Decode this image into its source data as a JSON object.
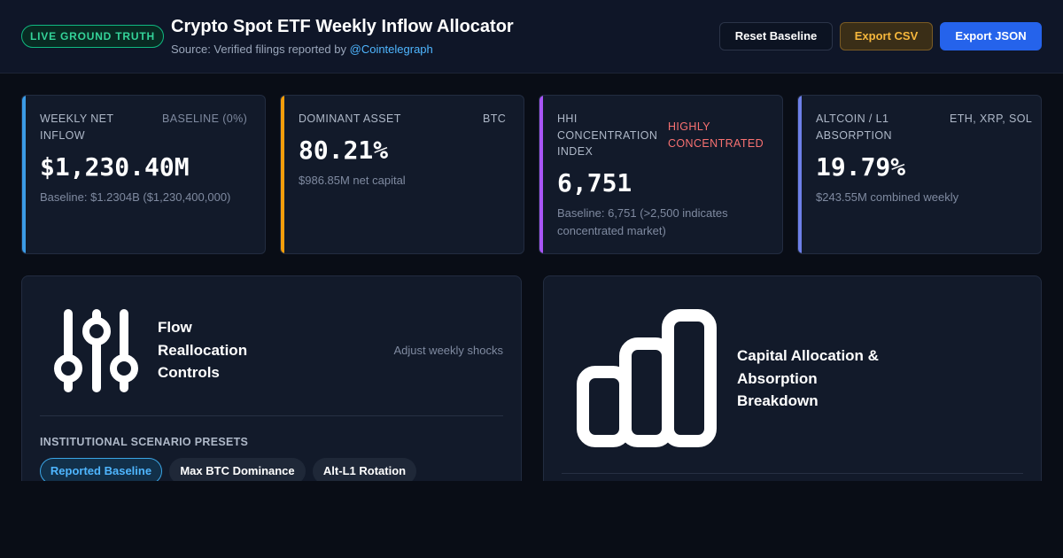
{
  "header": {
    "badge": "LIVE GROUND TRUTH",
    "title": "Crypto Spot ETF Weekly Inflow Allocator",
    "source_prefix": "Source: Verified filings reported by",
    "source_link": "@Cointelegraph"
  },
  "toolbar": {
    "reset_label": "Reset Baseline",
    "csv_label": "Export CSV",
    "json_label": "Export JSON"
  },
  "kpis": [
    {
      "label": "WEEKLY NET INFLOW",
      "tag": "BASELINE (0%)",
      "value": "$1,230.40M",
      "sub": "Baseline: $1.2304B ($1,230,400,000)",
      "accent": "#3b9be6",
      "tag_color": "#7f8aa0"
    },
    {
      "label": "DOMINANT ASSET",
      "tag": "BTC",
      "value": "80.21%",
      "sub": "$986.85M net capital",
      "accent": "#f59e0b",
      "tag_color": "#aeb8c8"
    },
    {
      "label": "HHI CONCENTRATION INDEX",
      "tag": "HIGHLY CONCENTRATED",
      "value": "6,751",
      "sub": "Baseline: 6,751 (>2,500 indicates concentrated market)",
      "accent": "#a855f7",
      "tag_color": "#f87171"
    },
    {
      "label": "ALTCOIN / L1 ABSORPTION",
      "tag": "ETH, XRP, SOL",
      "value": "19.79%",
      "sub": "$243.55M combined weekly",
      "accent": "#6d7fe8",
      "tag_color": "#aeb8c8"
    }
  ],
  "controls_panel": {
    "icon": "sliders-icon",
    "title": "Flow Reallocation Controls",
    "hint": "Adjust weekly shocks",
    "presets_label": "INSTITUTIONAL SCENARIO PRESETS",
    "presets": [
      {
        "label": "Reported Baseline",
        "active": true
      },
      {
        "label": "Max BTC Dominance",
        "active": false
      },
      {
        "label": "Alt-L1 Rotation",
        "active": false
      }
    ]
  },
  "allocation_panel": {
    "icon": "bar-chart-icon",
    "title": "Capital Allocation & Absorption Breakdown"
  },
  "colors": {
    "background": "#090d16",
    "card": "#121a2a",
    "live": "#34d399",
    "link": "#4fb6ff",
    "primary": "#2563eb",
    "warning": "#f6b73c",
    "danger": "#f87171"
  }
}
